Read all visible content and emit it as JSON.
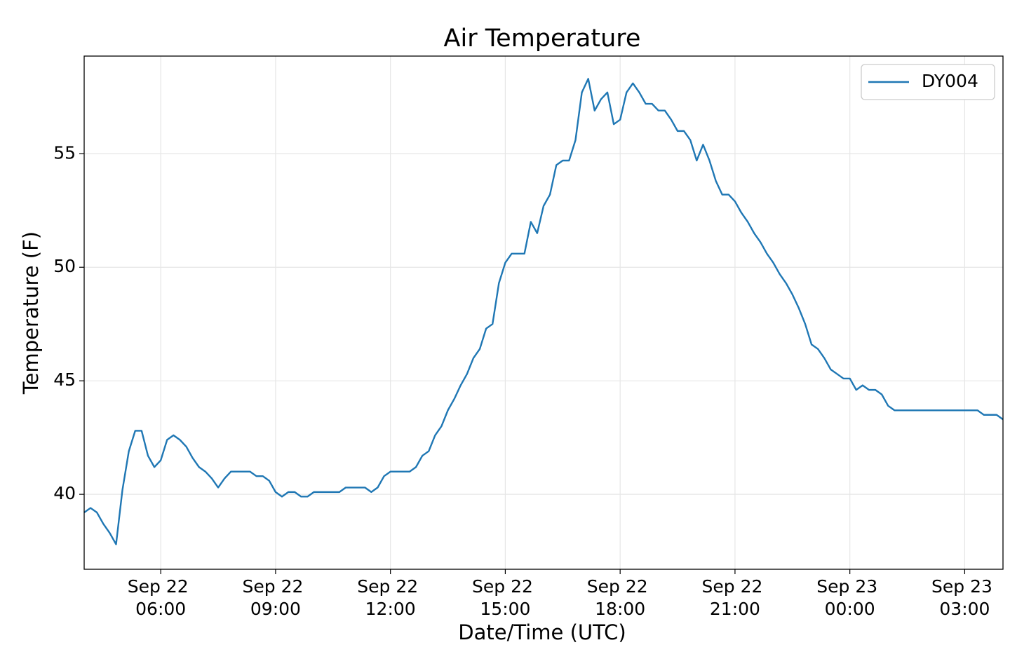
{
  "chart_data": {
    "type": "line",
    "title": "Air Temperature",
    "x_label": "Date/Time (UTC)",
    "y_label": "Temperature (F)",
    "grid": true,
    "legend_position": "upper right",
    "xlim": [
      "Sep 22 04:00",
      "Sep 23 04:00"
    ],
    "xticks": [
      "Sep 22 06:00",
      "Sep 22 09:00",
      "Sep 22 12:00",
      "Sep 22 15:00",
      "Sep 22 18:00",
      "Sep 22 21:00",
      "Sep 23 00:00",
      "Sep 23 03:00"
    ],
    "ylim": [
      36.7,
      59.3
    ],
    "yticks": [
      40,
      45,
      50,
      55
    ],
    "x": [
      "Sep 22 04:00",
      "Sep 22 04:10",
      "Sep 22 04:20",
      "Sep 22 04:30",
      "Sep 22 04:40",
      "Sep 22 04:50",
      "Sep 22 05:00",
      "Sep 22 05:10",
      "Sep 22 05:20",
      "Sep 22 05:30",
      "Sep 22 05:40",
      "Sep 22 05:50",
      "Sep 22 06:00",
      "Sep 22 06:10",
      "Sep 22 06:20",
      "Sep 22 06:30",
      "Sep 22 06:40",
      "Sep 22 06:50",
      "Sep 22 07:00",
      "Sep 22 07:10",
      "Sep 22 07:20",
      "Sep 22 07:30",
      "Sep 22 07:40",
      "Sep 22 07:50",
      "Sep 22 08:00",
      "Sep 22 08:10",
      "Sep 22 08:20",
      "Sep 22 08:30",
      "Sep 22 08:40",
      "Sep 22 08:50",
      "Sep 22 09:00",
      "Sep 22 09:10",
      "Sep 22 09:20",
      "Sep 22 09:30",
      "Sep 22 09:40",
      "Sep 22 09:50",
      "Sep 22 10:00",
      "Sep 22 10:10",
      "Sep 22 10:20",
      "Sep 22 10:30",
      "Sep 22 10:40",
      "Sep 22 10:50",
      "Sep 22 11:00",
      "Sep 22 11:10",
      "Sep 22 11:20",
      "Sep 22 11:30",
      "Sep 22 11:40",
      "Sep 22 11:50",
      "Sep 22 12:00",
      "Sep 22 12:10",
      "Sep 22 12:20",
      "Sep 22 12:30",
      "Sep 22 12:40",
      "Sep 22 12:50",
      "Sep 22 13:00",
      "Sep 22 13:10",
      "Sep 22 13:20",
      "Sep 22 13:30",
      "Sep 22 13:40",
      "Sep 22 13:50",
      "Sep 22 14:00",
      "Sep 22 14:10",
      "Sep 22 14:20",
      "Sep 22 14:30",
      "Sep 22 14:40",
      "Sep 22 14:50",
      "Sep 22 15:00",
      "Sep 22 15:10",
      "Sep 22 15:20",
      "Sep 22 15:30",
      "Sep 22 15:40",
      "Sep 22 15:50",
      "Sep 22 16:00",
      "Sep 22 16:10",
      "Sep 22 16:20",
      "Sep 22 16:30",
      "Sep 22 16:40",
      "Sep 22 16:50",
      "Sep 22 17:00",
      "Sep 22 17:10",
      "Sep 22 17:20",
      "Sep 22 17:30",
      "Sep 22 17:40",
      "Sep 22 17:50",
      "Sep 22 18:00",
      "Sep 22 18:10",
      "Sep 22 18:20",
      "Sep 22 18:30",
      "Sep 22 18:40",
      "Sep 22 18:50",
      "Sep 22 19:00",
      "Sep 22 19:10",
      "Sep 22 19:20",
      "Sep 22 19:30",
      "Sep 22 19:40",
      "Sep 22 19:50",
      "Sep 22 20:00",
      "Sep 22 20:10",
      "Sep 22 20:20",
      "Sep 22 20:30",
      "Sep 22 20:40",
      "Sep 22 20:50",
      "Sep 22 21:00",
      "Sep 22 21:10",
      "Sep 22 21:20",
      "Sep 22 21:30",
      "Sep 22 21:40",
      "Sep 22 21:50",
      "Sep 22 22:00",
      "Sep 22 22:10",
      "Sep 22 22:20",
      "Sep 22 22:30",
      "Sep 22 22:40",
      "Sep 22 22:50",
      "Sep 22 23:00",
      "Sep 22 23:10",
      "Sep 22 23:20",
      "Sep 22 23:30",
      "Sep 22 23:40",
      "Sep 22 23:50",
      "Sep 23 00:00",
      "Sep 23 00:10",
      "Sep 23 00:20",
      "Sep 23 00:30",
      "Sep 23 00:40",
      "Sep 23 00:50",
      "Sep 23 01:00",
      "Sep 23 01:10",
      "Sep 23 01:20",
      "Sep 23 01:30",
      "Sep 23 01:40",
      "Sep 23 01:50",
      "Sep 23 02:00",
      "Sep 23 02:10",
      "Sep 23 02:20",
      "Sep 23 02:30",
      "Sep 23 02:40",
      "Sep 23 02:50",
      "Sep 23 03:00",
      "Sep 23 03:10",
      "Sep 23 03:20",
      "Sep 23 03:30",
      "Sep 23 03:40",
      "Sep 23 03:50",
      "Sep 23 04:00"
    ],
    "series": [
      {
        "name": "DY004",
        "color": "#1f77b4",
        "values": [
          39.2,
          39.4,
          39.2,
          38.7,
          38.3,
          37.8,
          40.2,
          41.9,
          42.8,
          42.8,
          41.7,
          41.2,
          41.5,
          42.4,
          42.6,
          42.4,
          42.1,
          41.6,
          41.2,
          41.0,
          40.7,
          40.3,
          40.7,
          41.0,
          41.0,
          41.0,
          41.0,
          40.8,
          40.8,
          40.6,
          40.1,
          39.9,
          40.1,
          40.1,
          39.9,
          39.9,
          40.1,
          40.1,
          40.1,
          40.1,
          40.1,
          40.3,
          40.3,
          40.3,
          40.3,
          40.1,
          40.3,
          40.8,
          41.0,
          41.0,
          41.0,
          41.0,
          41.2,
          41.7,
          41.9,
          42.6,
          43.0,
          43.7,
          44.2,
          44.8,
          45.3,
          46.0,
          46.4,
          47.3,
          47.5,
          49.3,
          50.2,
          50.6,
          50.6,
          50.6,
          52.0,
          51.5,
          52.7,
          53.2,
          54.5,
          54.7,
          54.7,
          55.6,
          57.7,
          58.3,
          56.9,
          57.4,
          57.7,
          56.3,
          56.5,
          57.7,
          58.1,
          57.7,
          57.2,
          57.2,
          56.9,
          56.9,
          56.5,
          56.0,
          56.0,
          55.6,
          54.7,
          55.4,
          54.7,
          53.8,
          53.2,
          53.2,
          52.9,
          52.4,
          52.0,
          51.5,
          51.1,
          50.6,
          50.2,
          49.7,
          49.3,
          48.8,
          48.2,
          47.5,
          46.6,
          46.4,
          46.0,
          45.5,
          45.3,
          45.1,
          45.1,
          44.6,
          44.8,
          44.6,
          44.6,
          44.4,
          43.9,
          43.7,
          43.7,
          43.7,
          43.7,
          43.7,
          43.7,
          43.7,
          43.7,
          43.7,
          43.7,
          43.7,
          43.7,
          43.7,
          43.7,
          43.5,
          43.5,
          43.5,
          43.3
        ]
      }
    ]
  }
}
